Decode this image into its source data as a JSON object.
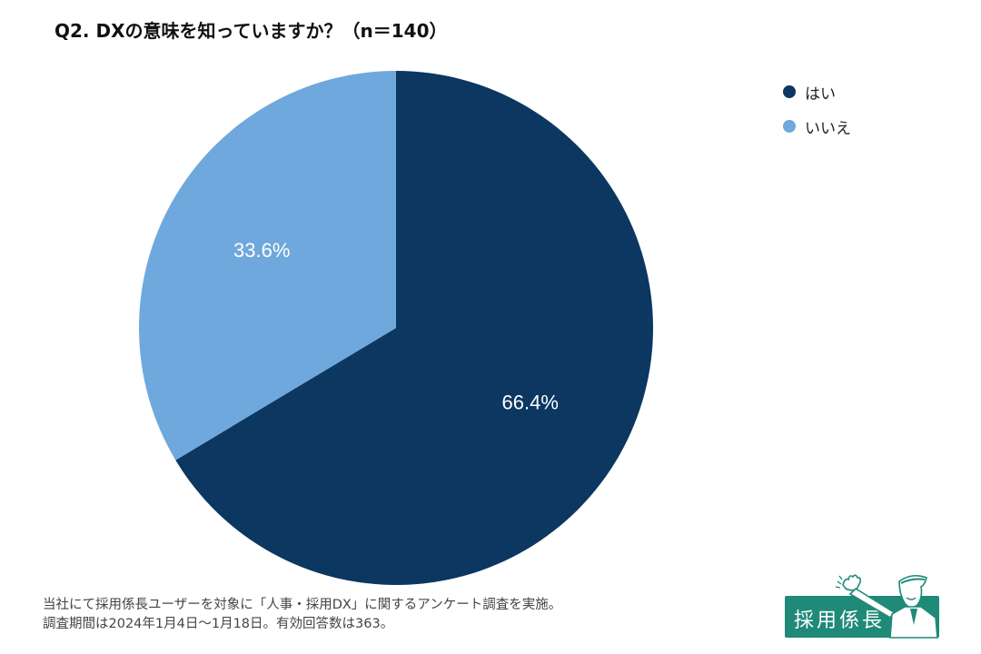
{
  "title": "Q2. DXの意味を知っていますか？（n＝140）",
  "chart_data": {
    "type": "pie",
    "title": "Q2. DXの意味を知っていますか？（n＝140）",
    "slices": [
      {
        "label": "はい",
        "value": 66.4,
        "display": "66.4%",
        "color": "#0b3761"
      },
      {
        "label": "いいえ",
        "value": 33.6,
        "display": "33.6%",
        "color": "#6fa8dc"
      }
    ],
    "start_angle_deg": 0,
    "direction": "clockwise",
    "legend_position": "top-right"
  },
  "footer": {
    "line1": "当社にて採用係長ユーザーを対象に「人事・採用DX」に関するアンケート調査を実施。",
    "line2": "調査期間は2024年1月4日〜1月18日。有効回答数は363。"
  },
  "logo": {
    "text": "採用係長"
  }
}
